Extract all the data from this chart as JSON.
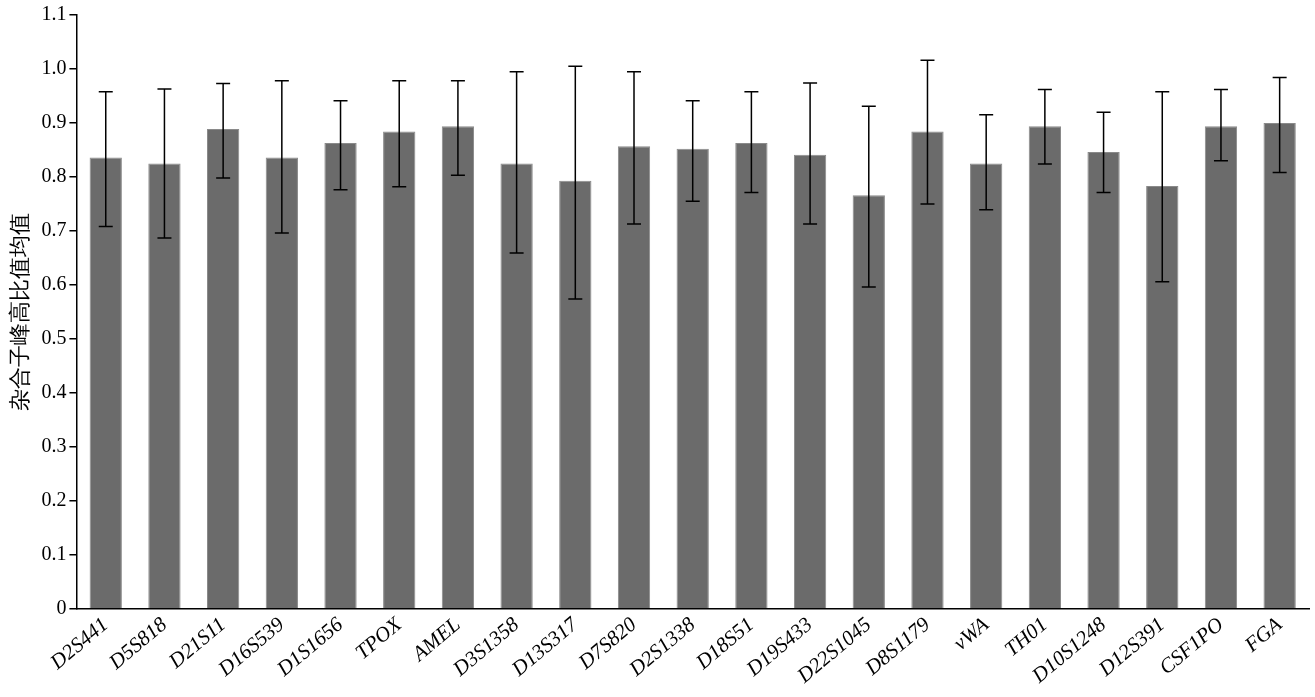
{
  "chart_data": {
    "type": "bar",
    "ylabel": "杂合子峰高比值均值",
    "categories": [
      "D2S441",
      "D5S818",
      "D21S11",
      "D16S539",
      "D1S1656",
      "TPOX",
      "AMEL",
      "D3S1358",
      "D13S317",
      "D7S820",
      "D2S1338",
      "D18S51",
      "D19S433",
      "D22S1045",
      "D8S1179",
      "vWA",
      "TH01",
      "D10S1248",
      "D12S391",
      "CSF1PO",
      "FGA"
    ],
    "values": [
      0.836,
      0.825,
      0.889,
      0.836,
      0.863,
      0.884,
      0.894,
      0.825,
      0.793,
      0.857,
      0.852,
      0.863,
      0.841,
      0.766,
      0.884,
      0.825,
      0.894,
      0.846,
      0.783,
      0.894,
      0.9
    ],
    "errors": [
      [
        0.708,
        0.958
      ],
      [
        0.687,
        0.963
      ],
      [
        0.798,
        0.973
      ],
      [
        0.696,
        0.978
      ],
      [
        0.776,
        0.941
      ],
      [
        0.782,
        0.978
      ],
      [
        0.803,
        0.978
      ],
      [
        0.659,
        0.995
      ],
      [
        0.574,
        1.005
      ],
      [
        0.713,
        0.995
      ],
      [
        0.755,
        0.941
      ],
      [
        0.771,
        0.958
      ],
      [
        0.713,
        0.974
      ],
      [
        0.596,
        0.931
      ],
      [
        0.75,
        1.016
      ],
      [
        0.739,
        0.915
      ],
      [
        0.824,
        0.962
      ],
      [
        0.771,
        0.92
      ],
      [
        0.606,
        0.958
      ],
      [
        0.83,
        0.962
      ],
      [
        0.808,
        0.984
      ]
    ],
    "color": "#6b6b6b",
    "ylim": [
      0,
      1.1
    ],
    "yticks": [
      0,
      0.1,
      0.2,
      0.3,
      0.4,
      0.5,
      0.6,
      0.7,
      0.8,
      0.9,
      {
        "value": 1,
        "label": "1.0"
      },
      1.1
    ],
    "grid": false,
    "legend": false
  }
}
